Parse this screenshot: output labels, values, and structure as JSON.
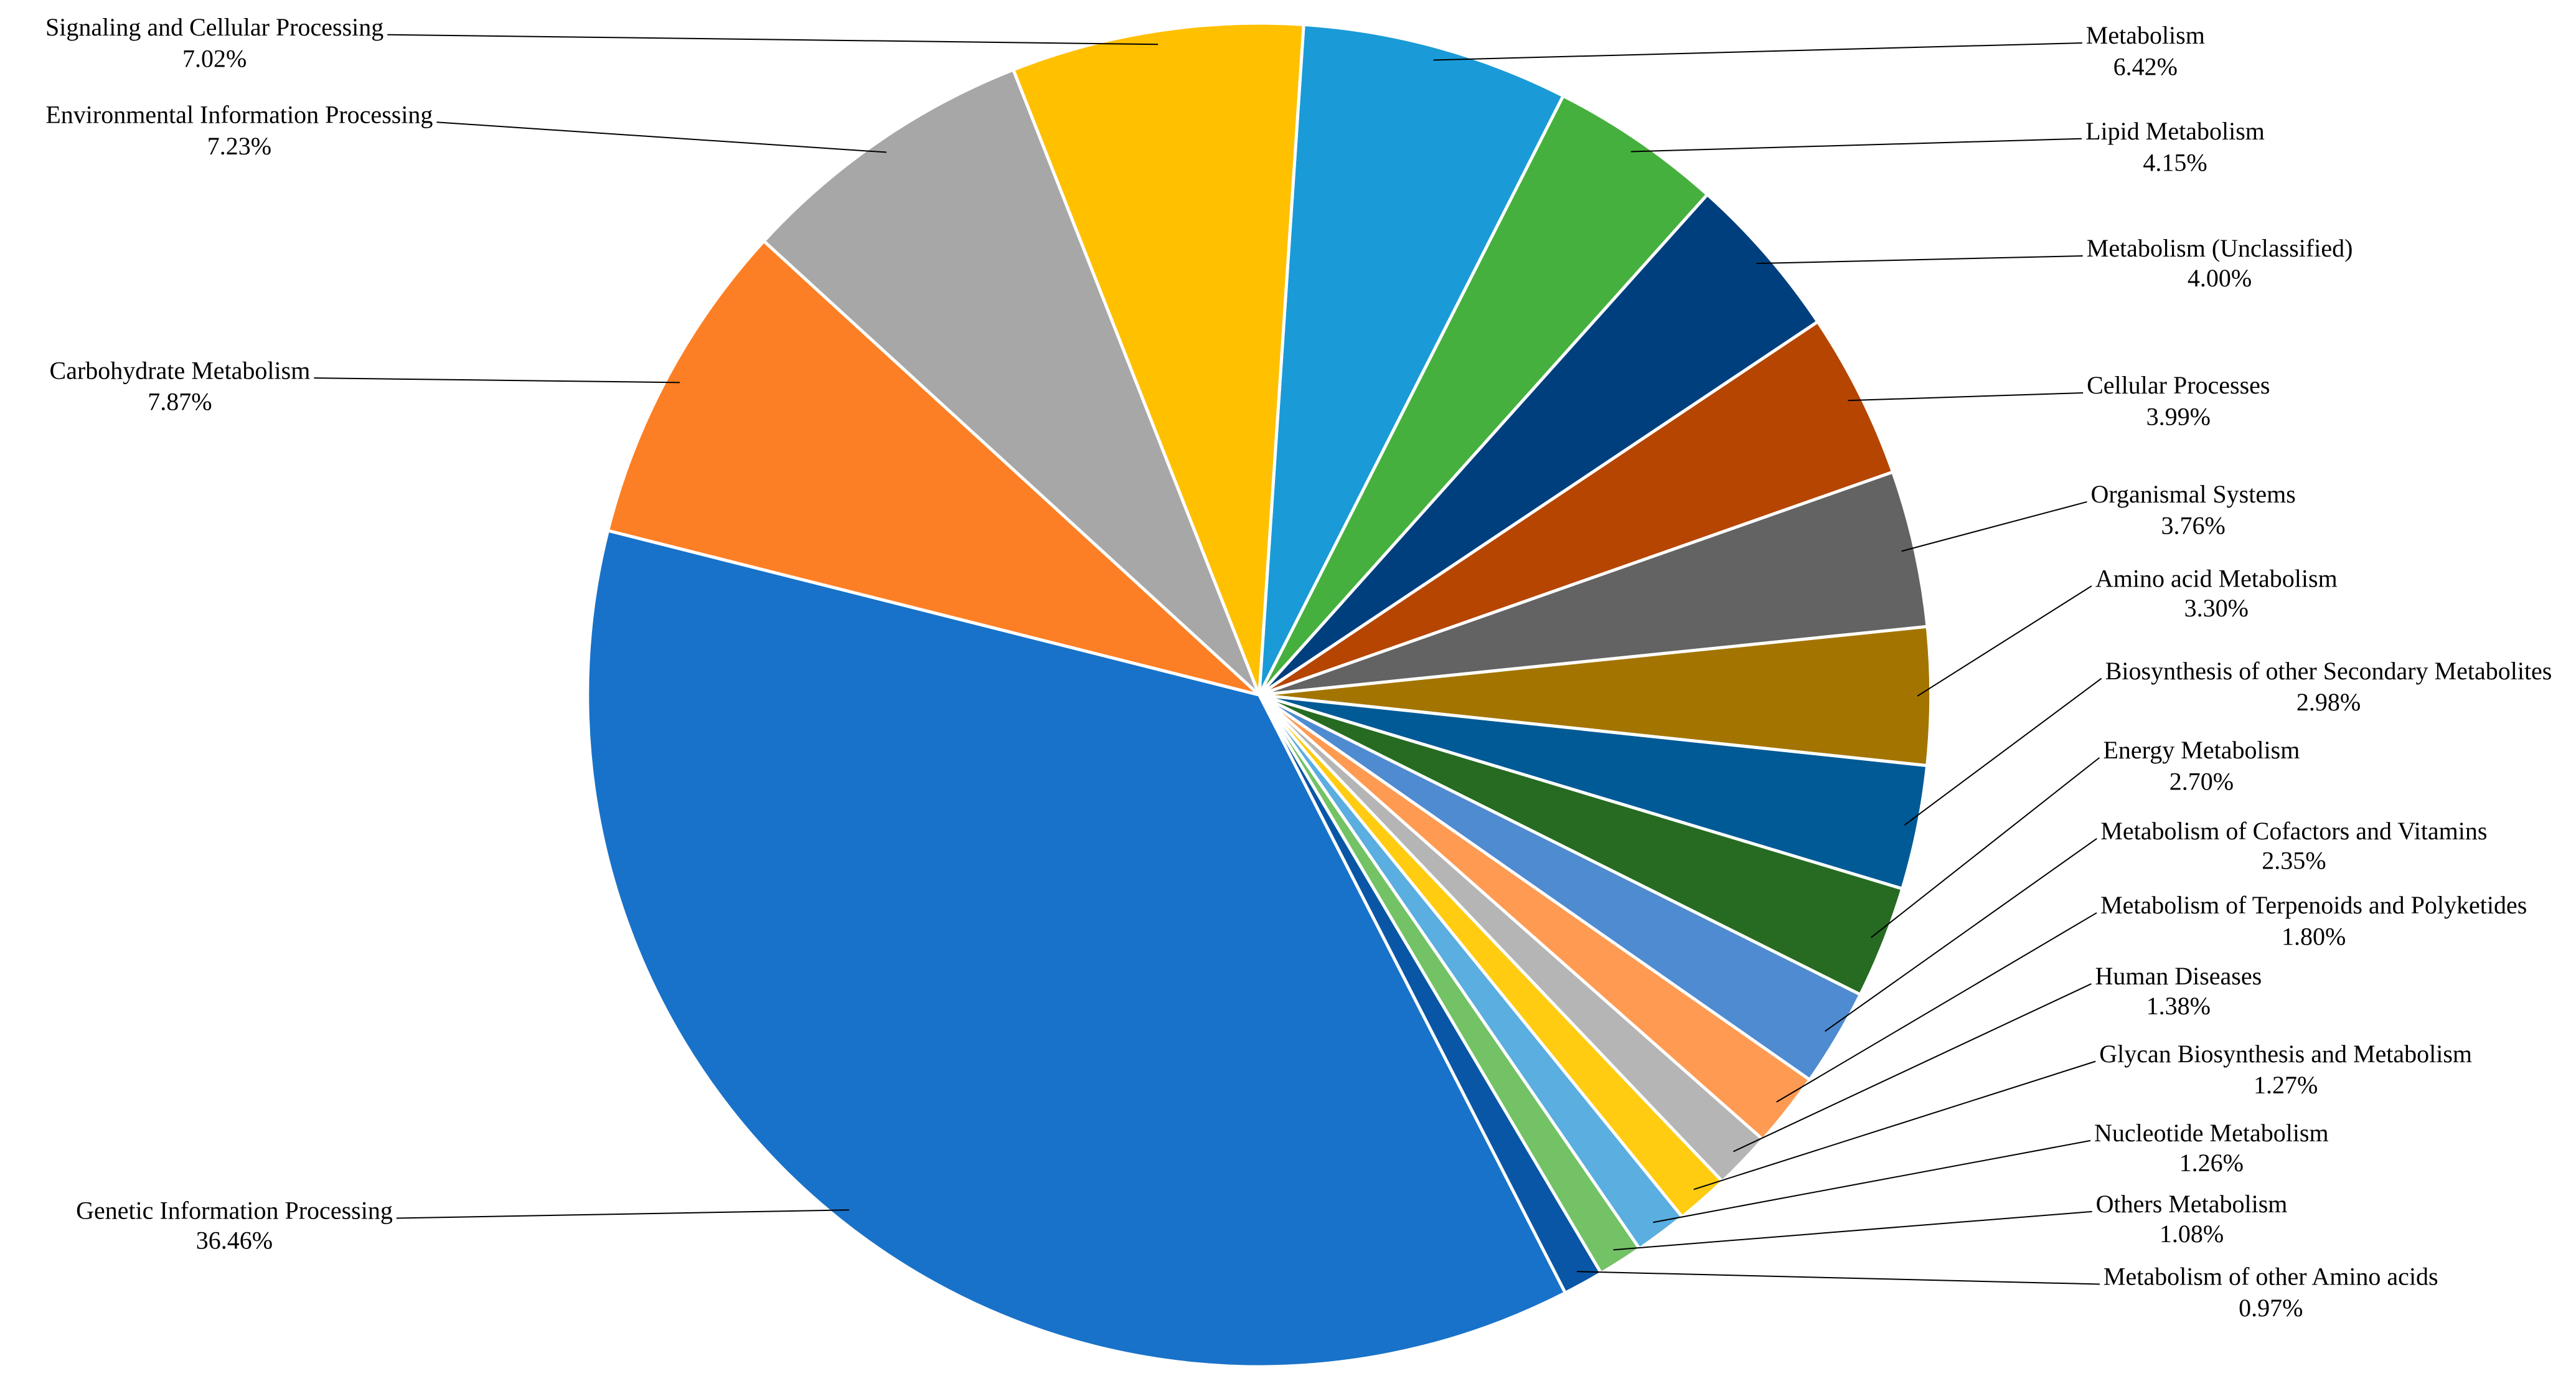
{
  "chart_data": {
    "type": "pie",
    "categories": [
      "Metabolism",
      "Lipid Metabolism",
      "Metabolism (Unclassified)",
      "Cellular Processes",
      "Organismal Systems",
      "Amino acid Metabolism",
      "Biosynthesis of other Secondary Metabolites",
      "Energy Metabolism",
      "Metabolism of Cofactors and Vitamins",
      "Metabolism of Terpenoids and Polyketides",
      "Human Diseases",
      "Glycan Biosynthesis and Metabolism",
      "Nucleotide Metabolism",
      "Others Metabolism",
      "Metabolism of other Amino acids",
      "Genetic Information Processing",
      "Carbohydrate Metabolism",
      "Environmental Information Processing",
      "Signaling and Cellular Processing"
    ],
    "values": [
      6.42,
      4.15,
      4.0,
      3.99,
      3.76,
      3.3,
      2.98,
      2.7,
      2.35,
      1.8,
      1.38,
      1.27,
      1.26,
      1.08,
      0.97,
      36.46,
      7.87,
      7.23,
      7.02
    ],
    "value_labels": [
      "6.42%",
      "4.15%",
      "4.00%",
      "3.99%",
      "3.76%",
      "3.30%",
      "2.98%",
      "2.70%",
      "2.35%",
      "1.80%",
      "1.38%",
      "1.27%",
      "1.26%",
      "1.08%",
      "0.97%",
      "36.46%",
      "7.87%",
      "7.23%",
      "7.02%"
    ],
    "colors": [
      "#1a9bd7",
      "#46b03e",
      "#003f7d",
      "#b54500",
      "#636363",
      "#a37500",
      "#005a96",
      "#266b21",
      "#4f8bd0",
      "#ff9a52",
      "#b5b5b5",
      "#ffcc12",
      "#5aaee0",
      "#73c265",
      "#0a56a6",
      "#1872c9",
      "#fd7f25",
      "#a7a7a7",
      "#ffc000"
    ]
  }
}
